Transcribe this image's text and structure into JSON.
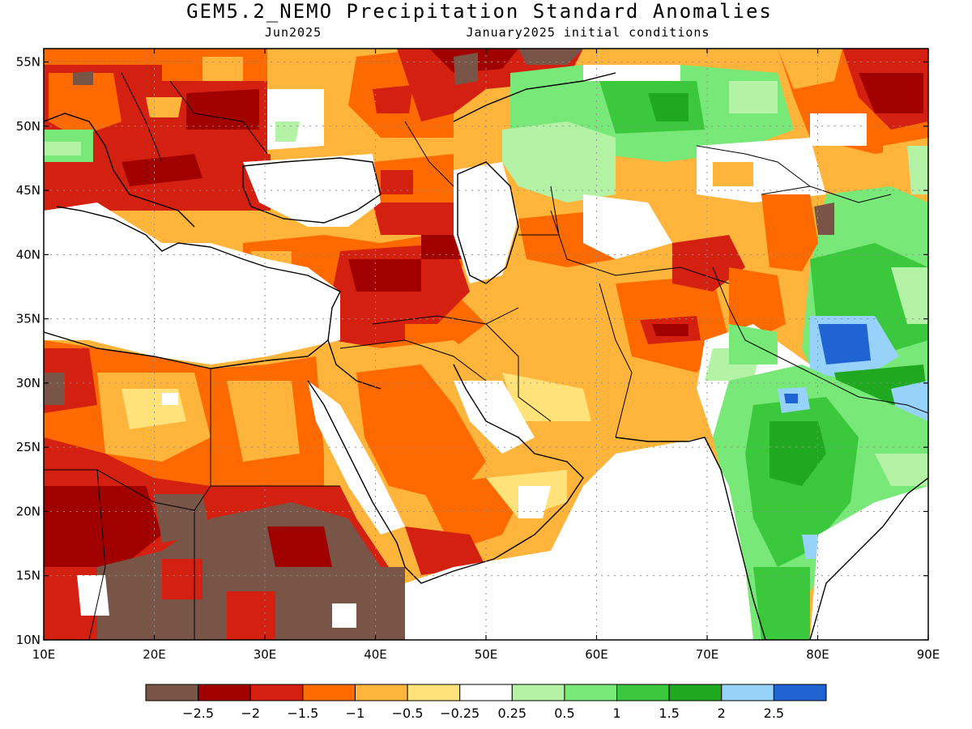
{
  "title": "GEM5.2_NEMO Precipitation Standard Anomalies",
  "subtitle_left": "Jun2025",
  "subtitle_right": "January2025 initial conditions",
  "lat_labels": [
    "55N",
    "50N",
    "45N",
    "40N",
    "35N",
    "30N",
    "25N",
    "20N",
    "15N",
    "10N"
  ],
  "lon_labels": [
    "10E",
    "20E",
    "30E",
    "40E",
    "50E",
    "60E",
    "70E",
    "80E",
    "90E"
  ],
  "legend": {
    "colors": [
      "#795548",
      "#a00000",
      "#d42010",
      "#ff6a00",
      "#ffb43c",
      "#ffe27a",
      "#ffffff",
      "#b4f3a6",
      "#78e878",
      "#3cc83c",
      "#20a820",
      "#96d2fa",
      "#1f64d2"
    ],
    "labels": [
      "−2.5",
      "−2",
      "−1.5",
      "−1",
      "−0.5",
      "−0.25",
      "0.25",
      "0.5",
      "1",
      "1.5",
      "2",
      "2.5"
    ]
  }
}
